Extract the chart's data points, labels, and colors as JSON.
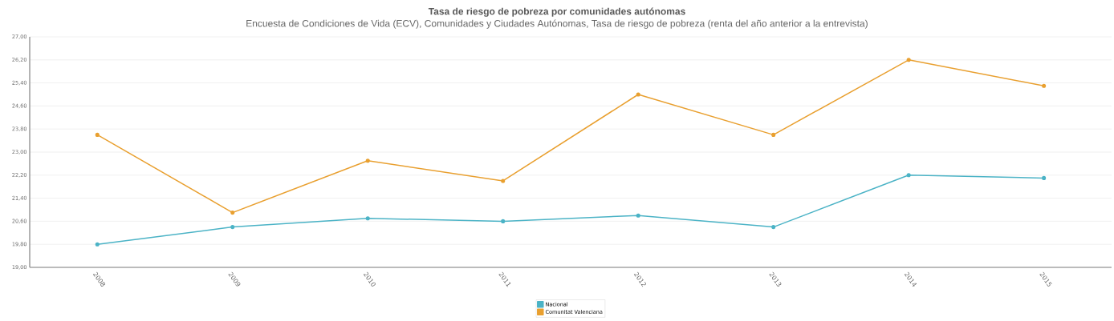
{
  "chart_data": {
    "type": "line",
    "title": "Tasa de riesgo de pobreza por comunidades autónomas",
    "subtitle": "Encuesta de Condiciones de Vida (ECV), Comunidades y Ciudades Autónomas, Tasa de riesgo de pobreza (renta del año anterior a la entrevista)",
    "categories": [
      "2008",
      "2009",
      "2010",
      "2011",
      "2012",
      "2013",
      "2014",
      "2015"
    ],
    "series": [
      {
        "name": "Nacional",
        "color": "#4bb3c6",
        "values": [
          19.8,
          20.4,
          20.7,
          20.6,
          20.8,
          20.4,
          22.2,
          22.1
        ]
      },
      {
        "name": "Comunitat Valenciana",
        "color": "#e9a030",
        "values": [
          23.6,
          20.9,
          22.7,
          22.0,
          25.0,
          23.6,
          26.2,
          25.3
        ]
      }
    ],
    "ylim": [
      19,
      27
    ],
    "yticks": [
      {
        "value": 19,
        "label": "19,00"
      },
      {
        "value": 19.8,
        "label": "19,80"
      },
      {
        "value": 20.6,
        "label": "20,60"
      },
      {
        "value": 21.4,
        "label": "21,40"
      },
      {
        "value": 22.2,
        "label": "22,20"
      },
      {
        "value": 23,
        "label": "23,00"
      },
      {
        "value": 23.8,
        "label": "23,80"
      },
      {
        "value": 24.6,
        "label": "24,60"
      },
      {
        "value": 25.4,
        "label": "25,40"
      },
      {
        "value": 26.2,
        "label": "26,20"
      },
      {
        "value": 27,
        "label": "27,00"
      }
    ],
    "grid": "y",
    "legend": "bottom",
    "marker": "circle",
    "line_style": "solid"
  }
}
